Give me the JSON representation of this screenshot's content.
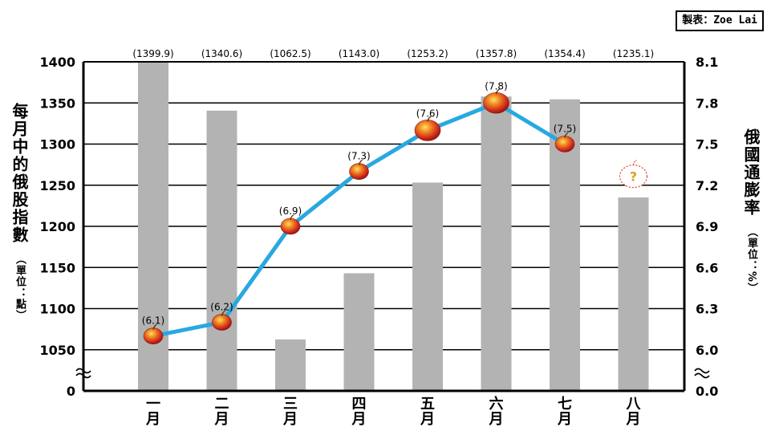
{
  "credit": {
    "label": "製表：",
    "name": "Zoe Lai"
  },
  "axis_labels": {
    "left_main": "每月中的俄股指數",
    "left_unit": "（單位：點）",
    "right_main": "俄國通膨率",
    "right_unit": "（單位：%）"
  },
  "chart_data": {
    "type": "bar+line",
    "categories": [
      "一月",
      "二月",
      "三月",
      "四月",
      "五月",
      "六月",
      "七月",
      "八月"
    ],
    "bar_series": {
      "axis": "left",
      "values": [
        1399.9,
        1340.6,
        1062.5,
        1143.0,
        1253.2,
        1357.8,
        1354.4,
        1235.1
      ],
      "labels": [
        "(1399.9)",
        "(1340.6)",
        "(1062.5)",
        "(1143.0)",
        "(1253.2)",
        "(1357.8)",
        "(1354.4)",
        "(1235.1)"
      ],
      "color": "#b3b3b3"
    },
    "line_series": {
      "axis": "right",
      "values": [
        6.1,
        6.2,
        6.9,
        7.3,
        7.6,
        7.8,
        7.5
      ],
      "labels": [
        "(6.1)",
        "(6.2)",
        "(6.9)",
        "(7.3)",
        "(7.6)",
        "(7.8)",
        "(7.5)"
      ],
      "color": "#29a8e0",
      "marker": "apple",
      "unknown_marker_label": "?"
    },
    "left_axis": {
      "ticks": [
        1400,
        1350,
        1300,
        1250,
        1200,
        1150,
        1100,
        1050,
        0
      ],
      "range": [
        1000,
        1400
      ],
      "axis_break": true
    },
    "right_axis": {
      "ticks": [
        "8.1",
        "7.8",
        "7.5",
        "7.2",
        "6.9",
        "6.6",
        "6.3",
        "6.0",
        "0.0"
      ],
      "range": [
        5.7,
        8.1
      ],
      "axis_break": true
    },
    "grid": true
  }
}
